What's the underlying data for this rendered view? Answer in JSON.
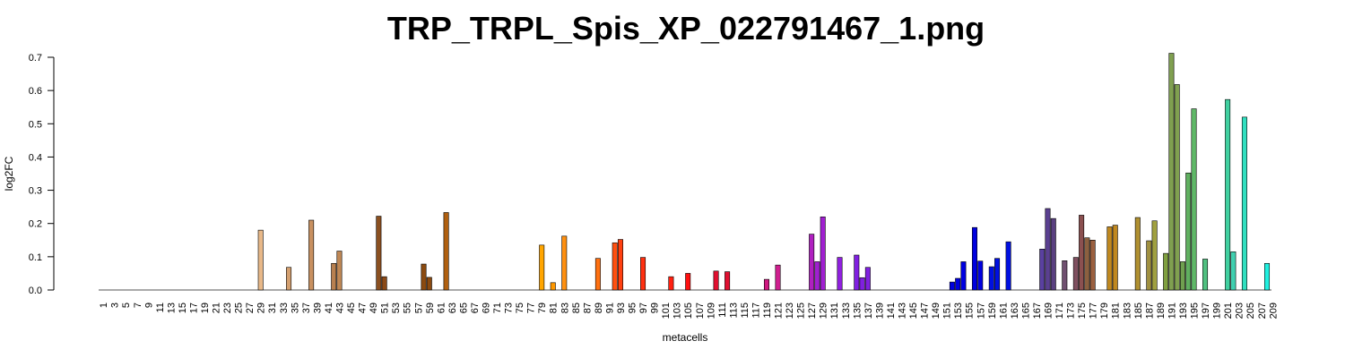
{
  "chart_data": {
    "type": "bar",
    "title": "TRP_TRPL_Spis_XP_022791467_1.png",
    "xlabel": "metacells",
    "ylabel": "log2FC",
    "ylim": [
      0,
      0.7
    ],
    "yticks": [
      0.0,
      0.1,
      0.2,
      0.3,
      0.4,
      0.5,
      0.6,
      0.7
    ],
    "ytick_labels": [
      "0.0",
      "0.1",
      "0.2",
      "0.3",
      "0.4",
      "0.5",
      "0.6",
      "0.7"
    ],
    "x_start": 1,
    "x_end": 209,
    "x_tick_step": 2,
    "nonzero_values": [
      {
        "x": 29,
        "y": 0.18,
        "color": "#e8b888"
      },
      {
        "x": 34,
        "y": 0.068,
        "color": "#d4a070"
      },
      {
        "x": 38,
        "y": 0.21,
        "color": "#c89060"
      },
      {
        "x": 42,
        "y": 0.08,
        "color": "#b88050"
      },
      {
        "x": 43,
        "y": 0.117,
        "color": "#c08855"
      },
      {
        "x": 50,
        "y": 0.222,
        "color": "#8b5020"
      },
      {
        "x": 51,
        "y": 0.04,
        "color": "#8b4a18"
      },
      {
        "x": 58,
        "y": 0.078,
        "color": "#8b4a10"
      },
      {
        "x": 59,
        "y": 0.038,
        "color": "#8b4a10"
      },
      {
        "x": 62,
        "y": 0.233,
        "color": "#b06010"
      },
      {
        "x": 79,
        "y": 0.135,
        "color": "#ffa500"
      },
      {
        "x": 81,
        "y": 0.022,
        "color": "#ff9800"
      },
      {
        "x": 83,
        "y": 0.162,
        "color": "#ff9010"
      },
      {
        "x": 89,
        "y": 0.095,
        "color": "#ff7010"
      },
      {
        "x": 92,
        "y": 0.142,
        "color": "#ff5010"
      },
      {
        "x": 93,
        "y": 0.152,
        "color": "#ff4010"
      },
      {
        "x": 97,
        "y": 0.098,
        "color": "#ff3010"
      },
      {
        "x": 102,
        "y": 0.04,
        "color": "#ff2010"
      },
      {
        "x": 105,
        "y": 0.05,
        "color": "#ff1010"
      },
      {
        "x": 110,
        "y": 0.057,
        "color": "#e01030"
      },
      {
        "x": 112,
        "y": 0.055,
        "color": "#e01030"
      },
      {
        "x": 119,
        "y": 0.032,
        "color": "#d01880"
      },
      {
        "x": 121,
        "y": 0.075,
        "color": "#d02090"
      },
      {
        "x": 127,
        "y": 0.168,
        "color": "#b020c0"
      },
      {
        "x": 128,
        "y": 0.085,
        "color": "#a020d0"
      },
      {
        "x": 129,
        "y": 0.22,
        "color": "#a020d0"
      },
      {
        "x": 132,
        "y": 0.098,
        "color": "#9020e0"
      },
      {
        "x": 135,
        "y": 0.105,
        "color": "#8020e0"
      },
      {
        "x": 136,
        "y": 0.037,
        "color": "#8020e0"
      },
      {
        "x": 137,
        "y": 0.068,
        "color": "#8020e0"
      },
      {
        "x": 152,
        "y": 0.024,
        "color": "#0000e0"
      },
      {
        "x": 153,
        "y": 0.035,
        "color": "#0000e0"
      },
      {
        "x": 154,
        "y": 0.085,
        "color": "#0000e0"
      },
      {
        "x": 156,
        "y": 0.188,
        "color": "#0000e0"
      },
      {
        "x": 157,
        "y": 0.087,
        "color": "#0000e0"
      },
      {
        "x": 159,
        "y": 0.07,
        "color": "#0010e0"
      },
      {
        "x": 160,
        "y": 0.095,
        "color": "#0010e0"
      },
      {
        "x": 162,
        "y": 0.145,
        "color": "#0010e0"
      },
      {
        "x": 168,
        "y": 0.123,
        "color": "#5a40a0"
      },
      {
        "x": 169,
        "y": 0.245,
        "color": "#5a4090"
      },
      {
        "x": 170,
        "y": 0.215,
        "color": "#5a4080"
      },
      {
        "x": 172,
        "y": 0.088,
        "color": "#705070"
      },
      {
        "x": 174,
        "y": 0.098,
        "color": "#805060"
      },
      {
        "x": 175,
        "y": 0.225,
        "color": "#8b5050"
      },
      {
        "x": 176,
        "y": 0.157,
        "color": "#8b6040"
      },
      {
        "x": 177,
        "y": 0.15,
        "color": "#9b6040"
      },
      {
        "x": 180,
        "y": 0.19,
        "color": "#c08820"
      },
      {
        "x": 181,
        "y": 0.195,
        "color": "#c08820"
      },
      {
        "x": 185,
        "y": 0.218,
        "color": "#b09030"
      },
      {
        "x": 187,
        "y": 0.148,
        "color": "#a09040"
      },
      {
        "x": 188,
        "y": 0.208,
        "color": "#a0a040"
      },
      {
        "x": 190,
        "y": 0.11,
        "color": "#80a040"
      },
      {
        "x": 191,
        "y": 0.712,
        "color": "#80a050"
      },
      {
        "x": 192,
        "y": 0.618,
        "color": "#80a050"
      },
      {
        "x": 193,
        "y": 0.085,
        "color": "#70a050"
      },
      {
        "x": 194,
        "y": 0.352,
        "color": "#60b060"
      },
      {
        "x": 195,
        "y": 0.545,
        "color": "#60b868"
      },
      {
        "x": 197,
        "y": 0.093,
        "color": "#50c080"
      },
      {
        "x": 201,
        "y": 0.573,
        "color": "#40d0a0"
      },
      {
        "x": 202,
        "y": 0.115,
        "color": "#40d0b0"
      },
      {
        "x": 204,
        "y": 0.52,
        "color": "#30e0c0"
      },
      {
        "x": 208,
        "y": 0.08,
        "color": "#20f0e0"
      }
    ]
  }
}
